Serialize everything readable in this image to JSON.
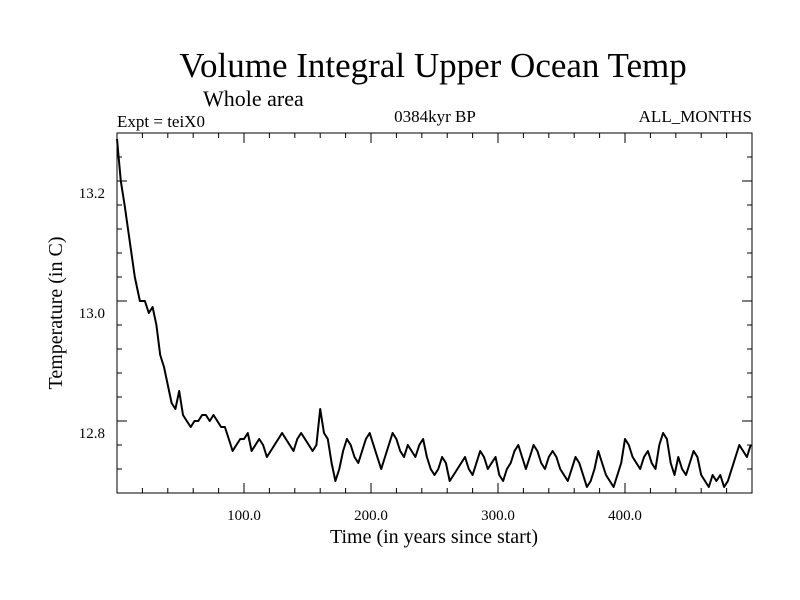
{
  "header": {
    "title": "Volume Integral Upper Ocean Temp",
    "subtitle": "Whole area",
    "expt": "Expt = teiX0",
    "period": "0384kyr BP",
    "months": "ALL_MONTHS"
  },
  "chart_data": {
    "type": "line",
    "title": "Volume Integral Upper Ocean Temp",
    "subtitle": "Whole area",
    "xlabel": "Time (in years since start)",
    "ylabel": "Temperature (in C)",
    "xlim": [
      0,
      500
    ],
    "ylim": [
      12.7,
      13.3
    ],
    "x_ticks": [
      100,
      200,
      300,
      400
    ],
    "x_tick_labels": [
      "100.0",
      "200.0",
      "300.0",
      "400.0"
    ],
    "y_ticks": [
      12.8,
      13.0,
      13.2
    ],
    "y_tick_labels": [
      "12.8",
      "13.0",
      "13.2"
    ],
    "grid": false,
    "legend": "none",
    "series": [
      {
        "color": "#000000",
        "x": [
          0,
          3,
          6,
          10,
          14,
          18,
          22,
          25,
          28,
          31,
          34,
          37,
          40,
          43,
          46,
          49,
          52,
          55,
          58,
          61,
          64,
          67,
          70,
          73,
          76,
          79,
          82,
          85,
          88,
          91,
          94,
          97,
          100,
          103,
          106,
          109,
          112,
          115,
          118,
          121,
          124,
          127,
          130,
          133,
          136,
          139,
          142,
          145,
          148,
          151,
          154,
          157,
          160,
          163,
          166,
          169,
          172,
          175,
          178,
          181,
          184,
          187,
          190,
          193,
          196,
          199,
          202,
          205,
          208,
          211,
          214,
          217,
          220,
          223,
          226,
          229,
          232,
          235,
          238,
          241,
          244,
          247,
          250,
          253,
          256,
          259,
          262,
          265,
          268,
          271,
          274,
          277,
          280,
          283,
          286,
          289,
          292,
          295,
          298,
          301,
          304,
          307,
          310,
          313,
          316,
          319,
          322,
          325,
          328,
          331,
          334,
          337,
          340,
          343,
          346,
          349,
          352,
          355,
          358,
          361,
          364,
          367,
          370,
          373,
          376,
          379,
          382,
          385,
          388,
          391,
          394,
          397,
          400,
          403,
          406,
          409,
          412,
          415,
          418,
          421,
          424,
          427,
          430,
          433,
          436,
          439,
          442,
          445,
          448,
          451,
          454,
          457,
          460,
          463,
          466,
          469,
          472,
          475,
          478,
          481,
          484,
          487,
          490,
          493,
          496,
          499
        ],
        "values": [
          13.29,
          13.22,
          13.18,
          13.12,
          13.06,
          13.02,
          13.02,
          13.0,
          13.01,
          12.98,
          12.93,
          12.91,
          12.88,
          12.85,
          12.84,
          12.87,
          12.83,
          12.82,
          12.81,
          12.82,
          12.82,
          12.83,
          12.83,
          12.82,
          12.83,
          12.82,
          12.81,
          12.81,
          12.79,
          12.77,
          12.78,
          12.79,
          12.79,
          12.8,
          12.77,
          12.78,
          12.79,
          12.78,
          12.76,
          12.77,
          12.78,
          12.79,
          12.8,
          12.79,
          12.78,
          12.77,
          12.79,
          12.8,
          12.79,
          12.78,
          12.77,
          12.78,
          12.84,
          12.8,
          12.79,
          12.75,
          12.72,
          12.74,
          12.77,
          12.79,
          12.78,
          12.76,
          12.75,
          12.77,
          12.79,
          12.8,
          12.78,
          12.76,
          12.74,
          12.76,
          12.78,
          12.8,
          12.79,
          12.77,
          12.76,
          12.78,
          12.77,
          12.76,
          12.78,
          12.79,
          12.76,
          12.74,
          12.73,
          12.74,
          12.76,
          12.75,
          12.72,
          12.73,
          12.74,
          12.75,
          12.76,
          12.74,
          12.73,
          12.75,
          12.77,
          12.76,
          12.74,
          12.75,
          12.76,
          12.73,
          12.72,
          12.74,
          12.75,
          12.77,
          12.78,
          12.76,
          12.74,
          12.76,
          12.78,
          12.77,
          12.75,
          12.74,
          12.76,
          12.77,
          12.76,
          12.74,
          12.73,
          12.72,
          12.74,
          12.76,
          12.75,
          12.73,
          12.71,
          12.72,
          12.74,
          12.77,
          12.75,
          12.73,
          12.72,
          12.71,
          12.73,
          12.75,
          12.79,
          12.78,
          12.76,
          12.75,
          12.74,
          12.76,
          12.77,
          12.75,
          12.74,
          12.78,
          12.8,
          12.79,
          12.75,
          12.73,
          12.76,
          12.74,
          12.73,
          12.75,
          12.77,
          12.76,
          12.73,
          12.72,
          12.71,
          12.73,
          12.72,
          12.73,
          12.71,
          12.72,
          12.74,
          12.76,
          12.78,
          12.77,
          12.76,
          12.78
        ]
      }
    ]
  }
}
